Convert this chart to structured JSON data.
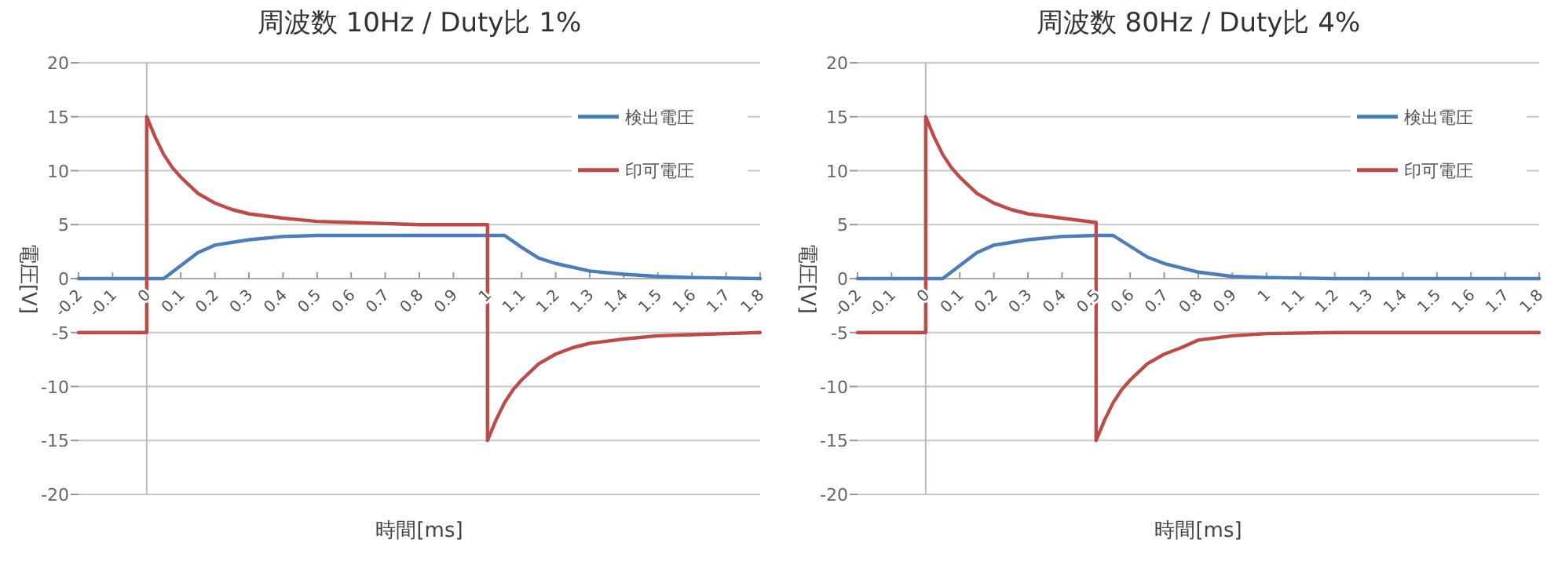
{
  "chart_data": [
    {
      "type": "line",
      "title": "周波数 10Hz / Duty比 1%",
      "xlabel": "時間[ms]",
      "ylabel": "電圧[V]",
      "xlim": [
        -0.2,
        1.8
      ],
      "xticks": [
        -0.2,
        -0.1,
        0,
        0.1,
        0.2,
        0.3,
        0.4,
        0.5,
        0.6,
        0.7,
        0.8,
        0.9,
        1,
        1.1,
        1.2,
        1.3,
        1.4,
        1.5,
        1.6,
        1.7,
        1.8
      ],
      "ylim": [
        -20,
        20
      ],
      "yticks": [
        -20,
        -15,
        -10,
        -5,
        0,
        5,
        10,
        15,
        20
      ],
      "grid": "y",
      "legend": "top right",
      "series": [
        {
          "name": "検出電圧",
          "color": "#4a7ebb",
          "x": [
            -0.2,
            0,
            0.05,
            0.1,
            0.15,
            0.2,
            0.3,
            0.4,
            0.5,
            0.7,
            0.9,
            1.05,
            1.1,
            1.15,
            1.2,
            1.3,
            1.4,
            1.5,
            1.6,
            1.8
          ],
          "values": [
            0,
            0,
            0,
            1.2,
            2.4,
            3.1,
            3.6,
            3.9,
            4,
            4,
            4,
            4,
            2.9,
            1.9,
            1.4,
            0.7,
            0.4,
            0.2,
            0.1,
            0
          ]
        },
        {
          "name": "印可電圧",
          "color": "#be4b48",
          "x": [
            -0.2,
            0,
            0,
            0.025,
            0.05,
            0.075,
            0.1,
            0.15,
            0.2,
            0.25,
            0.3,
            0.4,
            0.5,
            0.6,
            0.7,
            0.8,
            0.9,
            1,
            1,
            1.025,
            1.05,
            1.075,
            1.1,
            1.15,
            1.2,
            1.25,
            1.3,
            1.4,
            1.5,
            1.6,
            1.7,
            1.8
          ],
          "values": [
            -5,
            -5,
            15,
            13.1,
            11.5,
            10.3,
            9.4,
            7.9,
            7.0,
            6.4,
            6.0,
            5.6,
            5.3,
            5.2,
            5.1,
            5,
            5,
            5,
            -15,
            -13.1,
            -11.5,
            -10.3,
            -9.4,
            -7.9,
            -7.0,
            -6.4,
            -6.0,
            -5.6,
            -5.3,
            -5.2,
            -5.1,
            -5
          ]
        }
      ]
    },
    {
      "type": "line",
      "title": "周波数 80Hz / Duty比 4%",
      "xlabel": "時間[ms]",
      "ylabel": "電圧[V]",
      "xlim": [
        -0.2,
        1.8
      ],
      "xticks": [
        -0.2,
        -0.1,
        0,
        0.1,
        0.2,
        0.3,
        0.4,
        0.5,
        0.6,
        0.7,
        0.8,
        0.9,
        1,
        1.1,
        1.2,
        1.3,
        1.4,
        1.5,
        1.6,
        1.7,
        1.8
      ],
      "ylim": [
        -20,
        20
      ],
      "yticks": [
        -20,
        -15,
        -10,
        -5,
        0,
        5,
        10,
        15,
        20
      ],
      "grid": "y",
      "legend": "top right",
      "series": [
        {
          "name": "検出電圧",
          "color": "#4a7ebb",
          "x": [
            -0.2,
            0,
            0.05,
            0.1,
            0.15,
            0.2,
            0.3,
            0.4,
            0.5,
            0.55,
            0.6,
            0.65,
            0.7,
            0.8,
            0.9,
            1,
            1.2,
            1.8
          ],
          "values": [
            0,
            0,
            0,
            1.2,
            2.4,
            3.1,
            3.6,
            3.9,
            4,
            4,
            3.0,
            2.0,
            1.4,
            0.6,
            0.2,
            0.1,
            0,
            0
          ]
        },
        {
          "name": "印可電圧",
          "color": "#be4b48",
          "x": [
            -0.2,
            0,
            0,
            0.025,
            0.05,
            0.075,
            0.1,
            0.15,
            0.2,
            0.25,
            0.3,
            0.4,
            0.5,
            0.5,
            0.525,
            0.55,
            0.575,
            0.6,
            0.65,
            0.7,
            0.75,
            0.8,
            0.9,
            1,
            1.2,
            1.5,
            1.8
          ],
          "values": [
            -5,
            -5,
            15,
            13.1,
            11.5,
            10.3,
            9.4,
            7.9,
            7.0,
            6.4,
            6.0,
            5.6,
            5.2,
            -15,
            -13.1,
            -11.5,
            -10.3,
            -9.4,
            -7.9,
            -7.0,
            -6.4,
            -5.7,
            -5.3,
            -5.1,
            -5,
            -5,
            -5
          ]
        }
      ]
    }
  ]
}
